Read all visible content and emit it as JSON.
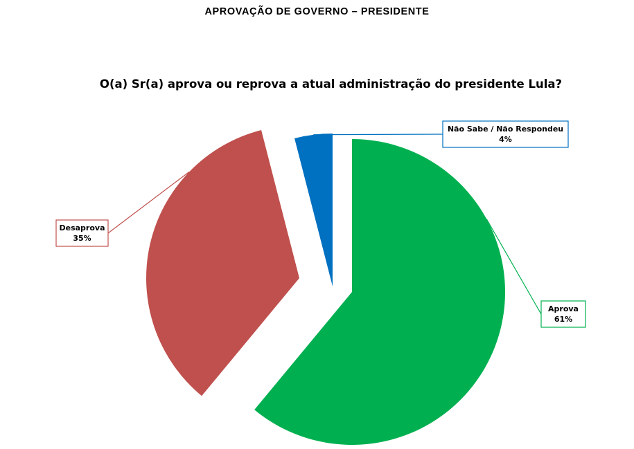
{
  "header": {
    "title": "APROVAÇÃO DE GOVERNO – PRESIDENTE"
  },
  "chart_data": {
    "type": "pie",
    "title": "O(a) Sr(a) aprova ou reprova a atual administração do presidente Lula?",
    "slices": [
      {
        "label": "Aprova",
        "value": 61,
        "value_label": "61%",
        "color": "#00B050"
      },
      {
        "label": "Desaprova",
        "value": 35,
        "value_label": "35%",
        "color": "#C0504D"
      },
      {
        "label": "Não Sabe / Não Respondeu",
        "value": 4,
        "value_label": "4%",
        "color": "#0070C0"
      }
    ],
    "exploded": true,
    "legend": "none",
    "data_labels": "callout"
  }
}
